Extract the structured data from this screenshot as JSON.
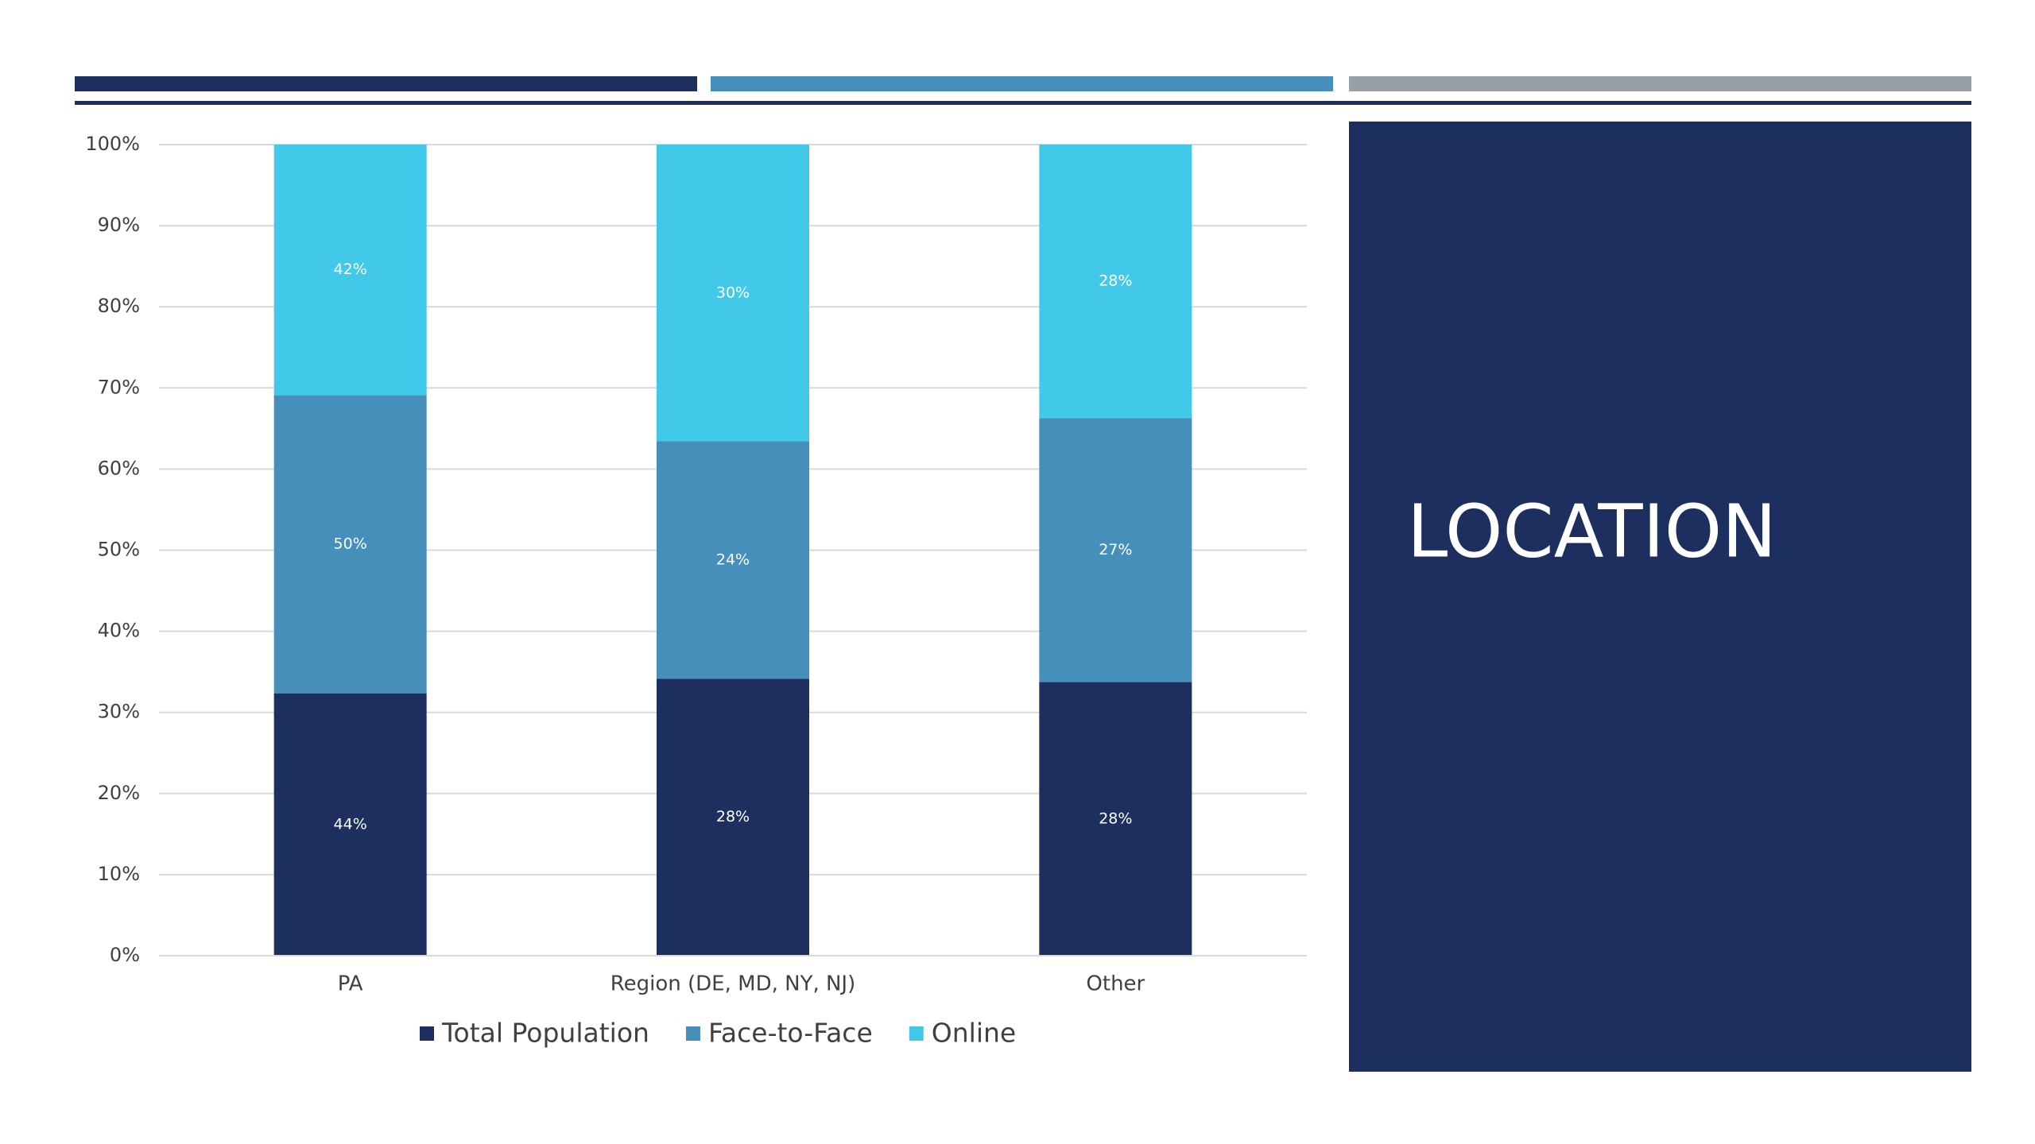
{
  "slide": {
    "title": "LOCATION"
  },
  "chart_data": {
    "type": "bar",
    "stacking": "percent",
    "grid": true,
    "legend": "bottom",
    "categories": [
      "PA",
      "Region (DE, MD, NY, NJ)",
      "Other"
    ],
    "series": [
      {
        "name": "Total Population",
        "color": "#1c2f5e",
        "values": [
          44,
          28,
          28
        ],
        "value_labels": [
          "44%",
          "28%",
          "28%"
        ]
      },
      {
        "name": "Face-to-Face",
        "color": "#468fbb",
        "values": [
          50,
          24,
          27
        ],
        "value_labels": [
          "50%",
          "24%",
          "27%"
        ]
      },
      {
        "name": "Online",
        "color": "#42c8e8",
        "values": [
          42,
          30,
          28
        ],
        "value_labels": [
          "42%",
          "30%",
          "28%"
        ]
      }
    ],
    "ylim": [
      0,
      100
    ],
    "yticks": [
      {
        "value": 0,
        "label": "0%"
      },
      {
        "value": 10,
        "label": "10%"
      },
      {
        "value": 20,
        "label": "20%"
      },
      {
        "value": 30,
        "label": "30%"
      },
      {
        "value": 40,
        "label": "40%"
      },
      {
        "value": 50,
        "label": "50%"
      },
      {
        "value": 60,
        "label": "60%"
      },
      {
        "value": 70,
        "label": "70%"
      },
      {
        "value": 80,
        "label": "80%"
      },
      {
        "value": 90,
        "label": "90%"
      },
      {
        "value": 100,
        "label": "100%"
      }
    ]
  }
}
